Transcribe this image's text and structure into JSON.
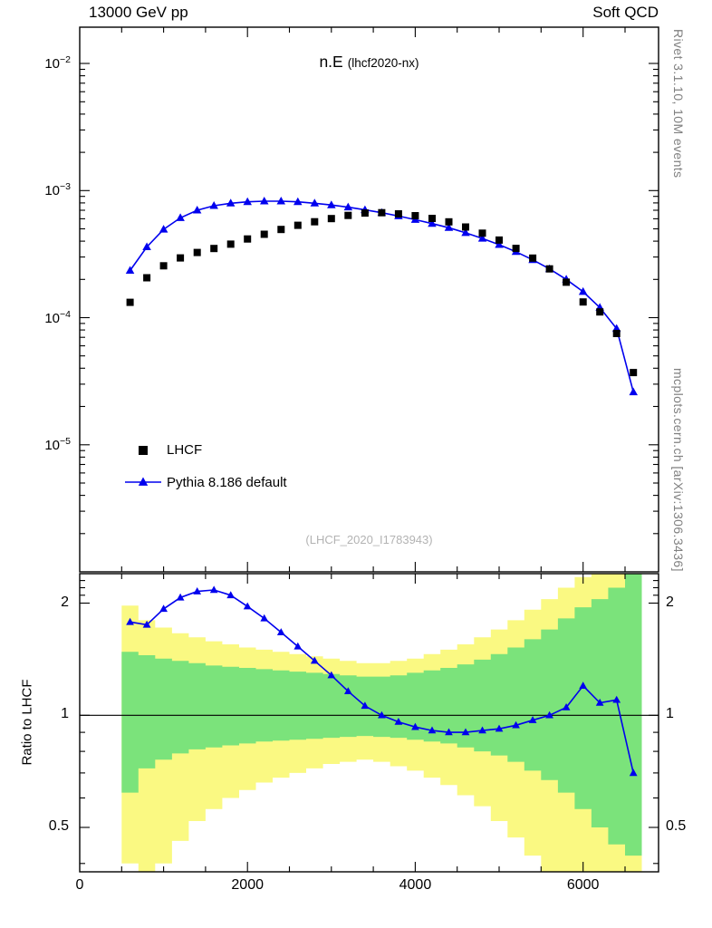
{
  "header": {
    "left": "13000 GeV pp",
    "right": "Soft QCD"
  },
  "title": {
    "main": "n.E",
    "sub": "(lhcf2020-nx)"
  },
  "side_notes": {
    "top": "Rivet 3.1.10, 10M events",
    "bottom": "mcplots.cern.ch [arXiv:1306.3436]"
  },
  "watermark": "(LHCF_2020_I1783943)",
  "legend": {
    "items": [
      {
        "label": "LHCF",
        "marker": "filled-square",
        "color": "#000000"
      },
      {
        "label": "Pythia 8.186 default",
        "marker": "line-with-filled-triangle",
        "color": "#0000ee"
      }
    ]
  },
  "colors": {
    "data": "#000000",
    "mc": "#0000ee",
    "band_outer": "#faf982",
    "band_inner": "#7be37b",
    "watermark": "#b3b3b3",
    "side_note": "#808080"
  },
  "chart_data": [
    {
      "type": "scatter",
      "panel": "main",
      "title": "n.E (lhcf2020-nx)",
      "yscale": "log",
      "ylim": [
        1e-06,
        0.0193
      ],
      "xlim": [
        0,
        6900
      ],
      "x": [
        600,
        800,
        1000,
        1200,
        1400,
        1600,
        1800,
        2000,
        2200,
        2400,
        2600,
        2800,
        3000,
        3200,
        3400,
        3600,
        3800,
        4000,
        4200,
        4400,
        4600,
        4800,
        5000,
        5200,
        5400,
        5600,
        5800,
        6000,
        6200,
        6400,
        6600
      ],
      "series": [
        {
          "name": "LHCF",
          "marker": "square",
          "color": "#000000",
          "values": [
            0.000132,
            0.000206,
            0.000256,
            0.000295,
            0.000326,
            0.00035,
            0.000379,
            0.000416,
            0.000453,
            0.000494,
            0.000533,
            0.000568,
            0.000602,
            0.000638,
            0.000665,
            0.00067,
            0.000656,
            0.000634,
            0.000604,
            0.000567,
            0.000517,
            0.000462,
            0.000408,
            0.000351,
            0.000294,
            0.000242,
            0.00019,
            0.000133,
            0.000111,
            7.5e-05,
            3.7e-05
          ]
        },
        {
          "name": "Pythia 8.186 default",
          "marker": "triangle",
          "color": "#0000ee",
          "values": [
            0.000235,
            0.00036,
            0.000495,
            0.00061,
            0.0007,
            0.00076,
            0.000795,
            0.000815,
            0.000825,
            0.000825,
            0.000815,
            0.000795,
            0.00077,
            0.00074,
            0.000705,
            0.00067,
            0.00063,
            0.00059,
            0.00055,
            0.00051,
            0.000465,
            0.00042,
            0.000375,
            0.00033,
            0.000285,
            0.000242,
            0.0002,
            0.00016,
            0.00012,
            8.2e-05,
            2.6e-05
          ]
        }
      ],
      "yticks": [
        {
          "value": 0.01,
          "label_exp": "−2"
        },
        {
          "value": 0.001,
          "label_exp": "−3"
        },
        {
          "value": 0.0001,
          "label_exp": "−4"
        },
        {
          "value": 1e-05,
          "label_exp": "−5"
        }
      ]
    },
    {
      "type": "ratio",
      "panel": "ratio",
      "ylabel": "Ratio to LHCF",
      "yscale": "log",
      "ylim": [
        0.38,
        2.4
      ],
      "xlim": [
        0,
        6900
      ],
      "xticks": [
        {
          "value": 0,
          "label": "0"
        },
        {
          "value": 2000,
          "label": "2000"
        },
        {
          "value": 4000,
          "label": "4000"
        },
        {
          "value": 6000,
          "label": "6000"
        }
      ],
      "yticks": [
        {
          "value": 2,
          "label": "2"
        },
        {
          "value": 1,
          "label": "1"
        },
        {
          "value": 0.5,
          "label": "0.5"
        }
      ],
      "x": [
        600,
        800,
        1000,
        1200,
        1400,
        1600,
        1800,
        2000,
        2200,
        2400,
        2600,
        2800,
        3000,
        3200,
        3400,
        3600,
        3800,
        4000,
        4200,
        4400,
        4600,
        4800,
        5000,
        5200,
        5400,
        5600,
        5800,
        6000,
        6200,
        6400,
        6600
      ],
      "ratio": [
        1.78,
        1.75,
        1.93,
        2.07,
        2.15,
        2.17,
        2.1,
        1.96,
        1.82,
        1.67,
        1.53,
        1.4,
        1.28,
        1.16,
        1.06,
        1.0,
        0.96,
        0.93,
        0.91,
        0.9,
        0.9,
        0.91,
        0.92,
        0.94,
        0.97,
        1.0,
        1.05,
        1.2,
        1.08,
        1.1,
        0.7
      ],
      "bands": {
        "bin_edges": [
          500,
          700,
          900,
          1100,
          1300,
          1500,
          1700,
          1900,
          2100,
          2300,
          2500,
          2700,
          2900,
          3100,
          3300,
          3500,
          3700,
          3900,
          4100,
          4300,
          4500,
          4700,
          4900,
          5100,
          5300,
          5500,
          5700,
          5900,
          6100,
          6300,
          6500,
          6700
        ],
        "outer_lo": [
          0.4,
          0.33,
          0.4,
          0.46,
          0.52,
          0.56,
          0.6,
          0.63,
          0.66,
          0.68,
          0.7,
          0.72,
          0.74,
          0.75,
          0.76,
          0.75,
          0.73,
          0.71,
          0.68,
          0.65,
          0.61,
          0.57,
          0.52,
          0.47,
          0.42,
          0.38,
          0.36,
          0.35,
          0.35,
          0.35,
          0.35
        ],
        "outer_hi": [
          1.97,
          1.8,
          1.72,
          1.66,
          1.62,
          1.58,
          1.55,
          1.52,
          1.5,
          1.48,
          1.46,
          1.44,
          1.42,
          1.4,
          1.38,
          1.38,
          1.4,
          1.42,
          1.46,
          1.5,
          1.55,
          1.62,
          1.7,
          1.8,
          1.92,
          2.05,
          2.2,
          2.35,
          2.45,
          2.45,
          2.45
        ],
        "inner_lo": [
          0.62,
          0.72,
          0.76,
          0.79,
          0.81,
          0.82,
          0.83,
          0.84,
          0.85,
          0.855,
          0.86,
          0.865,
          0.87,
          0.875,
          0.88,
          0.875,
          0.87,
          0.86,
          0.85,
          0.84,
          0.82,
          0.8,
          0.78,
          0.75,
          0.71,
          0.67,
          0.62,
          0.56,
          0.5,
          0.45,
          0.42
        ],
        "inner_hi": [
          1.48,
          1.45,
          1.42,
          1.4,
          1.38,
          1.36,
          1.35,
          1.34,
          1.33,
          1.32,
          1.31,
          1.3,
          1.29,
          1.28,
          1.27,
          1.27,
          1.28,
          1.3,
          1.32,
          1.34,
          1.37,
          1.41,
          1.46,
          1.52,
          1.6,
          1.7,
          1.82,
          1.95,
          2.05,
          2.2,
          2.45
        ]
      }
    }
  ]
}
